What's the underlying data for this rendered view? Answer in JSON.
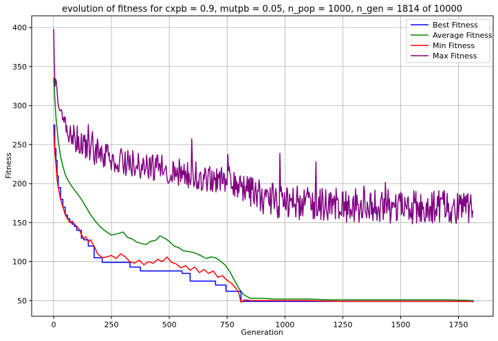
{
  "chart_data": {
    "type": "line",
    "title": "evolution of fitness for cxpb = 0.9, mutpb = 0.05, n_pop = 1000, n_gen = 1814 of 10000",
    "xlabel": "Generation",
    "ylabel": "Fitness",
    "xlim": [
      -95,
      1900
    ],
    "ylim": [
      30,
      415
    ],
    "xticks": [
      0,
      250,
      500,
      750,
      1000,
      1250,
      1500,
      1750
    ],
    "yticks": [
      50,
      100,
      150,
      200,
      250,
      300,
      350,
      400
    ],
    "grid": true,
    "legend_position": "top-right",
    "series": [
      {
        "name": "Best Fitness",
        "color": "#0000ff",
        "stepped": true,
        "x": [
          0,
          5,
          10,
          15,
          20,
          30,
          40,
          50,
          60,
          70,
          80,
          90,
          100,
          120,
          130,
          150,
          175,
          210,
          330,
          375,
          555,
          590,
          700,
          745,
          810,
          1814
        ],
        "y": [
          275,
          245,
          230,
          210,
          195,
          180,
          170,
          160,
          155,
          150,
          148,
          145,
          140,
          130,
          128,
          120,
          105,
          99,
          93,
          88,
          85,
          75,
          70,
          62,
          49,
          48
        ]
      },
      {
        "name": "Average Fitness",
        "color": "#008000",
        "x": [
          0,
          10,
          20,
          30,
          40,
          50,
          60,
          80,
          100,
          120,
          140,
          160,
          180,
          200,
          220,
          250,
          280,
          300,
          320,
          340,
          360,
          380,
          400,
          420,
          440,
          460,
          480,
          500,
          520,
          540,
          560,
          580,
          600,
          620,
          640,
          660,
          680,
          700,
          720,
          740,
          760,
          780,
          800,
          820,
          850,
          900,
          950,
          1000,
          1100,
          1200,
          1300,
          1400,
          1500,
          1600,
          1700,
          1814
        ],
        "y": [
          336,
          285,
          255,
          235,
          222,
          212,
          205,
          196,
          188,
          180,
          170,
          160,
          152,
          145,
          140,
          134,
          136,
          138,
          131,
          129,
          125,
          123,
          122,
          126,
          127,
          133,
          130,
          126,
          120,
          118,
          114,
          113,
          112,
          110,
          107,
          104,
          106,
          105,
          101,
          96,
          88,
          77,
          66,
          58,
          53,
          53,
          52,
          52,
          52,
          51,
          51,
          51,
          51,
          51,
          51,
          50
        ]
      },
      {
        "name": "Min Fitness",
        "color": "#ff0000",
        "x": [
          0,
          5,
          10,
          15,
          20,
          30,
          40,
          50,
          60,
          70,
          80,
          90,
          100,
          110,
          120,
          130,
          140,
          150,
          160,
          170,
          175,
          190,
          210,
          230,
          250,
          270,
          290,
          310,
          330,
          350,
          370,
          390,
          410,
          430,
          450,
          470,
          490,
          510,
          530,
          550,
          570,
          590,
          610,
          630,
          650,
          670,
          690,
          710,
          730,
          750,
          770,
          790,
          800,
          810,
          825,
          850,
          900,
          1000,
          1100,
          1250,
          1400,
          1500,
          1600,
          1700,
          1814
        ],
        "y": [
          275,
          240,
          225,
          205,
          195,
          180,
          170,
          160,
          155,
          150,
          152,
          148,
          145,
          142,
          135,
          130,
          132,
          125,
          128,
          122,
          120,
          110,
          105,
          106,
          108,
          104,
          110,
          106,
          100,
          98,
          102,
          96,
          100,
          98,
          103,
          100,
          106,
          99,
          97,
          92,
          95,
          89,
          93,
          86,
          90,
          85,
          88,
          80,
          82,
          76,
          72,
          65,
          60,
          48,
          51,
          50,
          50,
          50,
          50,
          49,
          49,
          49,
          49,
          49,
          49
        ]
      },
      {
        "name": "Max Fitness",
        "color": "#800080",
        "noise": true,
        "x": [
          0,
          5,
          15,
          25,
          40,
          60,
          80,
          100,
          125,
          150,
          175,
          200,
          250,
          300,
          350,
          400,
          450,
          500,
          550,
          600,
          650,
          700,
          750,
          800,
          850,
          900,
          950,
          1000,
          1100,
          1200,
          1300,
          1400,
          1500,
          1600,
          1700,
          1814
        ],
        "y": [
          398,
          335,
          318,
          300,
          285,
          270,
          262,
          255,
          250,
          246,
          240,
          236,
          230,
          226,
          222,
          220,
          218,
          216,
          212,
          210,
          206,
          203,
          199,
          193,
          188,
          180,
          176,
          174,
          172,
          170,
          170,
          169,
          168,
          168,
          168,
          168
        ]
      }
    ]
  }
}
